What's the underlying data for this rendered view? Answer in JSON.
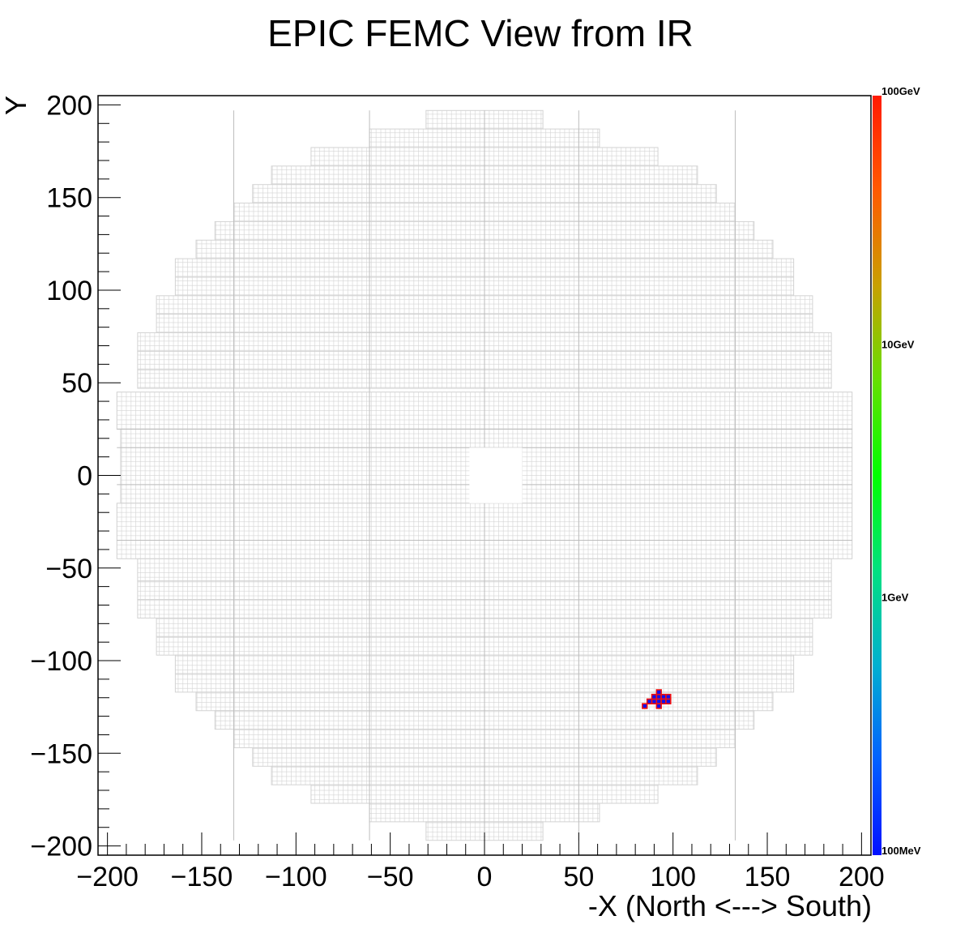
{
  "chart_data": {
    "type": "heatmap",
    "title": "EPIC FEMC View from IR",
    "xlabel": "-X (North <---> South)",
    "ylabel": "Y",
    "xlim": [
      -205,
      205
    ],
    "ylim": [
      -205,
      205
    ],
    "x_ticks": [
      -200,
      -150,
      -100,
      -50,
      0,
      50,
      100,
      150,
      200
    ],
    "y_ticks": [
      200,
      150,
      100,
      50,
      0,
      -50,
      -100,
      -150,
      -200
    ],
    "x_tick_labels": [
      "−200",
      "−150",
      "−100",
      "−50",
      "0",
      "50",
      "100",
      "150",
      "200"
    ],
    "y_tick_labels": [
      "200",
      "150",
      "100",
      "50",
      "0",
      "−50",
      "−100",
      "−150",
      "−200"
    ],
    "detector_outline": {
      "cell_size": 2.5,
      "beam_hole": {
        "x": [
          -8,
          20
        ],
        "y": [
          -15,
          15
        ]
      },
      "rows": [
        {
          "y": [
            187,
            197
          ],
          "x": [
            -31,
            31
          ]
        },
        {
          "y": [
            177,
            187
          ],
          "x": [
            -61,
            61
          ]
        },
        {
          "y": [
            167,
            177
          ],
          "x": [
            -92,
            92
          ]
        },
        {
          "y": [
            157,
            167
          ],
          "x": [
            -113,
            113
          ]
        },
        {
          "y": [
            147,
            157
          ],
          "x": [
            -123,
            123
          ]
        },
        {
          "y": [
            137,
            147
          ],
          "x": [
            -133,
            133
          ]
        },
        {
          "y": [
            127,
            137
          ],
          "x": [
            -143,
            143
          ]
        },
        {
          "y": [
            117,
            127
          ],
          "x": [
            -153,
            153
          ]
        },
        {
          "y": [
            107,
            117
          ],
          "x": [
            -164,
            164
          ]
        },
        {
          "y": [
            97,
            107
          ],
          "x": [
            -164,
            164
          ]
        },
        {
          "y": [
            87,
            97
          ],
          "x": [
            -174,
            174
          ]
        },
        {
          "y": [
            77,
            87
          ],
          "x": [
            -174,
            174
          ]
        },
        {
          "y": [
            67,
            77
          ],
          "x": [
            -184,
            184
          ]
        },
        {
          "y": [
            57,
            67
          ],
          "x": [
            -184,
            184
          ]
        },
        {
          "y": [
            47,
            57
          ],
          "x": [
            -184,
            184
          ]
        },
        {
          "y": [
            25,
            45
          ],
          "x": [
            -195,
            195
          ]
        },
        {
          "y": [
            -15,
            25
          ],
          "x": [
            -193,
            195
          ]
        },
        {
          "y": [
            -45,
            -15
          ],
          "x": [
            -195,
            195
          ]
        },
        {
          "y": [
            -57,
            -45
          ],
          "x": [
            -184,
            184
          ]
        },
        {
          "y": [
            -67,
            -57
          ],
          "x": [
            -184,
            184
          ]
        },
        {
          "y": [
            -77,
            -67
          ],
          "x": [
            -184,
            184
          ]
        },
        {
          "y": [
            -87,
            -77
          ],
          "x": [
            -174,
            174
          ]
        },
        {
          "y": [
            -97,
            -87
          ],
          "x": [
            -174,
            174
          ]
        },
        {
          "y": [
            -107,
            -97
          ],
          "x": [
            -164,
            164
          ]
        },
        {
          "y": [
            -117,
            -107
          ],
          "x": [
            -164,
            164
          ]
        },
        {
          "y": [
            -127,
            -117
          ],
          "x": [
            -153,
            153
          ]
        },
        {
          "y": [
            -137,
            -127
          ],
          "x": [
            -143,
            143
          ]
        },
        {
          "y": [
            -147,
            -137
          ],
          "x": [
            -133,
            133
          ]
        },
        {
          "y": [
            -157,
            -147
          ],
          "x": [
            -123,
            123
          ]
        },
        {
          "y": [
            -167,
            -157
          ],
          "x": [
            -113,
            113
          ]
        },
        {
          "y": [
            -177,
            -167
          ],
          "x": [
            -92,
            92
          ]
        },
        {
          "y": [
            -187,
            -177
          ],
          "x": [
            -61,
            61
          ]
        },
        {
          "y": [
            -197,
            -187
          ],
          "x": [
            -31,
            31
          ]
        }
      ],
      "module_columns": [
        -133,
        -61,
        0,
        50,
        133
      ],
      "module_rows": [
        -35,
        -5,
        15,
        25
      ]
    },
    "hits": [
      {
        "x": 85,
        "y": -124.5,
        "energy": "blue"
      },
      {
        "x": 87.5,
        "y": -122,
        "energy": "blue"
      },
      {
        "x": 90,
        "y": -122,
        "energy": "blue"
      },
      {
        "x": 90,
        "y": -119.5,
        "energy": "blue"
      },
      {
        "x": 92.5,
        "y": -117,
        "energy": "blue"
      },
      {
        "x": 92.5,
        "y": -119.5,
        "energy": "blue"
      },
      {
        "x": 92.5,
        "y": -122,
        "energy": "blue"
      },
      {
        "x": 92.5,
        "y": -124.5,
        "energy": "blue"
      },
      {
        "x": 95,
        "y": -119.5,
        "energy": "blue"
      },
      {
        "x": 95,
        "y": -122,
        "energy": "blue"
      },
      {
        "x": 97.5,
        "y": -119.5,
        "energy": "blue"
      },
      {
        "x": 97.5,
        "y": -122,
        "energy": "blue"
      }
    ],
    "colorbar": {
      "labels": [
        "100GeV",
        "10GeV",
        "1GeV",
        "100MeV"
      ],
      "scale": "log",
      "colors_top_to_bottom": [
        "#ff1a00",
        "#ff5a00",
        "#c8a000",
        "#66e000",
        "#00ff00",
        "#00e080",
        "#00b0d0",
        "#0060ff",
        "#0010ff"
      ]
    },
    "colors": {
      "grid_cell": "#d3d3d3",
      "hit_fill": "#1010ee",
      "hit_edge": "#ee1010"
    }
  }
}
